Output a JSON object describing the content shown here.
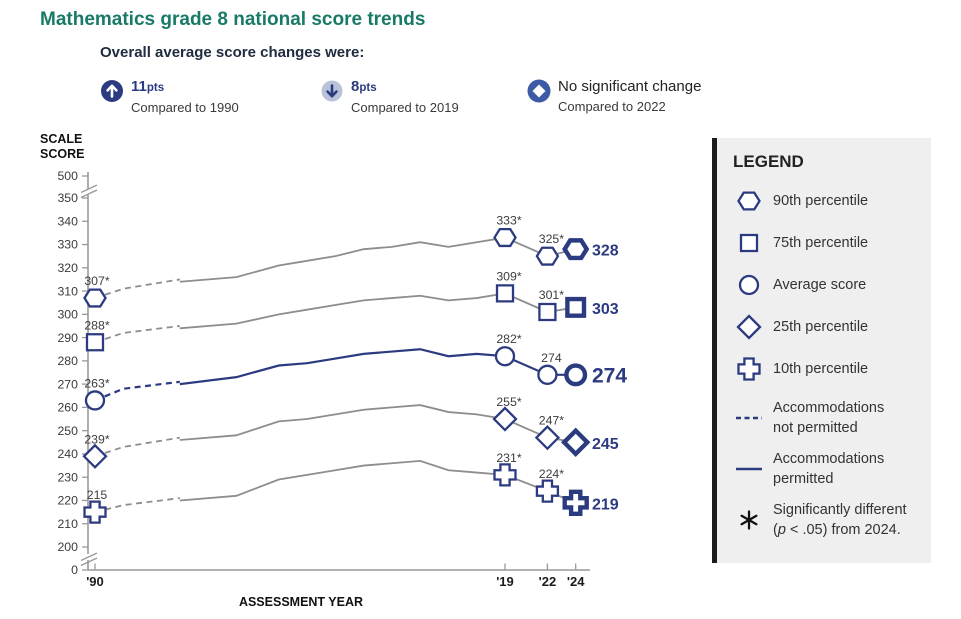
{
  "title": "Mathematics grade 8 national score trends",
  "colors": {
    "accent_navy": "#2c3b80",
    "line_gray": "#8d8d8d",
    "title_teal": "#1a7a68",
    "legend_bg": "#efefef",
    "legend_bar": "#1b1b1b",
    "down_badge_bg": "#b9c2d8",
    "no_change_badge_blue": "#3c5ba4",
    "label_text": "#3d3d3d"
  },
  "header": {
    "heading": "Overall average score changes were:",
    "indicators": [
      {
        "icon": "up-arrow-circle-icon",
        "value": "11",
        "unit": "pts",
        "caption": "Compared to 1990"
      },
      {
        "icon": "down-arrow-circle-icon",
        "value": "8",
        "unit": "pts",
        "caption": "Compared to 2019"
      },
      {
        "icon": "no-change-diamond-icon",
        "label": "No significant change",
        "caption": "Compared to 2022"
      }
    ]
  },
  "legend": {
    "title": "LEGEND",
    "items": [
      {
        "marker": "hexagon",
        "lines": [
          "90th percentile"
        ]
      },
      {
        "marker": "square",
        "lines": [
          "75th percentile"
        ]
      },
      {
        "marker": "circle",
        "lines": [
          "Average score"
        ]
      },
      {
        "marker": "diamond",
        "lines": [
          "25th percentile"
        ]
      },
      {
        "marker": "plus",
        "lines": [
          "10th percentile"
        ]
      },
      {
        "marker": "dashed-line",
        "lines": [
          "Accommodations",
          "not permitted"
        ]
      },
      {
        "marker": "solid-line",
        "lines": [
          "Accommodations",
          "permitted"
        ]
      },
      {
        "marker": "asterisk",
        "lines": [
          "Significantly different",
          "(p < .05) from 2024."
        ],
        "italic_p": true
      }
    ]
  },
  "chart_data": {
    "type": "line",
    "title": "Mathematics grade 8 national score trends",
    "xlabel": "ASSESSMENT YEAR",
    "ylabel": "SCALE SCORE",
    "ylabel_lines": [
      "SCALE",
      "SCORE"
    ],
    "x_tick_labels": [
      "'90",
      "'19",
      "'22",
      "'24"
    ],
    "x_tick_years": [
      1990,
      2019,
      2022,
      2024
    ],
    "y_ticks": [
      0,
      200,
      210,
      220,
      230,
      240,
      250,
      260,
      270,
      280,
      290,
      300,
      310,
      320,
      330,
      340,
      350,
      500
    ],
    "y_axis_breaks": [
      [
        350,
        500
      ],
      [
        0,
        200
      ]
    ],
    "grid": false,
    "legend_position": "right",
    "series": [
      {
        "name": "90th percentile",
        "marker": "hexagon",
        "line_color": "gray",
        "dashed_segment": {
          "years": [
            1990,
            1992,
            1996
          ],
          "values": [
            307,
            311,
            315
          ]
        },
        "solid_segment": {
          "years": [
            1996,
            2000,
            2003,
            2005,
            2007,
            2009,
            2011,
            2013,
            2015,
            2017,
            2019,
            2022,
            2024
          ],
          "values": [
            314,
            316,
            321,
            323,
            325,
            328,
            329,
            331,
            329,
            331,
            333,
            325,
            328
          ]
        },
        "marked_points": [
          {
            "year": 1990,
            "value": 307,
            "label": "307*"
          },
          {
            "year": 2019,
            "value": 333,
            "label": "333*"
          },
          {
            "year": 2022,
            "value": 325,
            "label": "325*"
          },
          {
            "year": 2024,
            "value": 328,
            "label": "",
            "current": true
          }
        ],
        "end_label": "328"
      },
      {
        "name": "75th percentile",
        "marker": "square",
        "line_color": "gray",
        "dashed_segment": {
          "years": [
            1990,
            1992,
            1996
          ],
          "values": [
            288,
            292,
            295
          ]
        },
        "solid_segment": {
          "years": [
            1996,
            2000,
            2003,
            2005,
            2007,
            2009,
            2011,
            2013,
            2015,
            2017,
            2019,
            2022,
            2024
          ],
          "values": [
            294,
            296,
            300,
            302,
            304,
            306,
            307,
            308,
            306,
            307,
            309,
            301,
            303
          ]
        },
        "marked_points": [
          {
            "year": 1990,
            "value": 288,
            "label": "288*"
          },
          {
            "year": 2019,
            "value": 309,
            "label": "309*"
          },
          {
            "year": 2022,
            "value": 301,
            "label": "301*"
          },
          {
            "year": 2024,
            "value": 303,
            "label": "",
            "current": true
          }
        ],
        "end_label": "303"
      },
      {
        "name": "Average score",
        "marker": "circle",
        "line_color": "navy",
        "emphasized": true,
        "dashed_segment": {
          "years": [
            1990,
            1992,
            1996
          ],
          "values": [
            263,
            268,
            271
          ]
        },
        "solid_segment": {
          "years": [
            1996,
            2000,
            2003,
            2005,
            2007,
            2009,
            2011,
            2013,
            2015,
            2017,
            2019,
            2022,
            2024
          ],
          "values": [
            270,
            273,
            278,
            279,
            281,
            283,
            284,
            285,
            282,
            283,
            282,
            274,
            274
          ]
        },
        "marked_points": [
          {
            "year": 1990,
            "value": 263,
            "label": "263*"
          },
          {
            "year": 2019,
            "value": 282,
            "label": "282*"
          },
          {
            "year": 2022,
            "value": 274,
            "label": "274"
          },
          {
            "year": 2024,
            "value": 274,
            "label": "",
            "current": true
          }
        ],
        "end_label": "274"
      },
      {
        "name": "25th percentile",
        "marker": "diamond",
        "line_color": "gray",
        "dashed_segment": {
          "years": [
            1990,
            1992,
            1996
          ],
          "values": [
            239,
            243,
            247
          ]
        },
        "solid_segment": {
          "years": [
            1996,
            2000,
            2003,
            2005,
            2007,
            2009,
            2011,
            2013,
            2015,
            2017,
            2019,
            2022,
            2024
          ],
          "values": [
            246,
            248,
            254,
            255,
            257,
            259,
            260,
            261,
            258,
            257,
            255,
            247,
            245
          ]
        },
        "marked_points": [
          {
            "year": 1990,
            "value": 239,
            "label": "239*"
          },
          {
            "year": 2019,
            "value": 255,
            "label": "255*"
          },
          {
            "year": 2022,
            "value": 247,
            "label": "247*"
          },
          {
            "year": 2024,
            "value": 245,
            "label": "",
            "current": true
          }
        ],
        "end_label": "245"
      },
      {
        "name": "10th percentile",
        "marker": "plus",
        "line_color": "gray",
        "dashed_segment": {
          "years": [
            1990,
            1992,
            1996
          ],
          "values": [
            215,
            218,
            221
          ]
        },
        "solid_segment": {
          "years": [
            1996,
            2000,
            2003,
            2005,
            2007,
            2009,
            2011,
            2013,
            2015,
            2017,
            2019,
            2022,
            2024
          ],
          "values": [
            220,
            222,
            229,
            231,
            233,
            235,
            236,
            237,
            233,
            232,
            231,
            224,
            219
          ]
        },
        "marked_points": [
          {
            "year": 1990,
            "value": 215,
            "label": "215"
          },
          {
            "year": 2019,
            "value": 231,
            "label": "231*"
          },
          {
            "year": 2022,
            "value": 224,
            "label": "224*"
          },
          {
            "year": 2024,
            "value": 219,
            "label": "",
            "current": true
          }
        ],
        "end_label": "219"
      }
    ]
  }
}
